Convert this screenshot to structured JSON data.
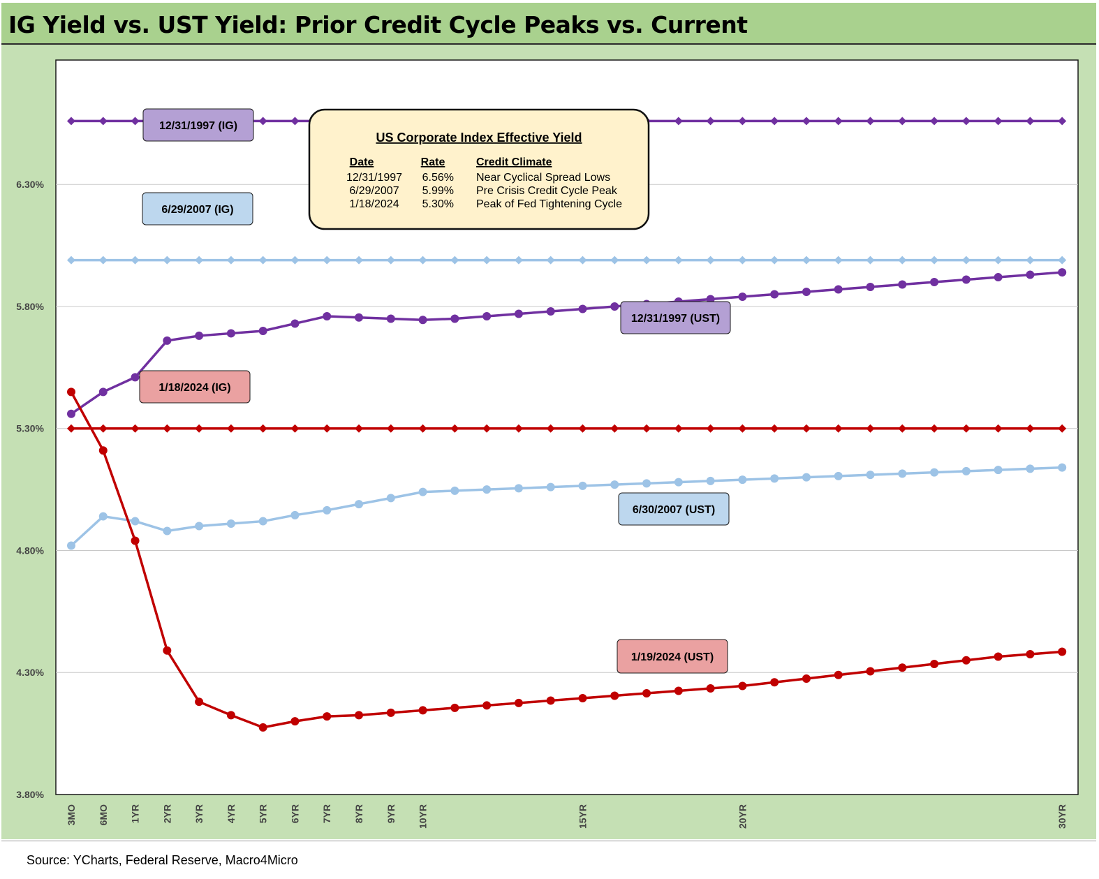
{
  "title": "IG Yield vs. UST Yield: Prior Credit Cycle Peaks vs. Current",
  "source": "Source: YCharts, Federal Reserve, Macro4Micro",
  "colors": {
    "purple_line": "#7030a0",
    "light_blue_line": "#9dc3e6",
    "red_line": "#c00000",
    "purple_label": "#b4a0d4",
    "blue_label": "#bdd7ee",
    "red_label": "#eaa1a1",
    "info_box": "#fff2cc",
    "chart_bg": "#c5e0b4",
    "title_bg": "#a9d18e"
  },
  "chart_data": {
    "type": "line",
    "title": "IG Yield vs. UST Yield: Prior Credit Cycle Peaks vs. Current",
    "x": [
      "3MO",
      "6MO",
      "1YR",
      "2YR",
      "3YR",
      "4YR",
      "5YR",
      "6YR",
      "7YR",
      "8YR",
      "9YR",
      "10YR",
      "11YR",
      "12YR",
      "13YR",
      "14YR",
      "15YR",
      "16YR",
      "17YR",
      "18YR",
      "19YR",
      "20YR",
      "21YR",
      "22YR",
      "23YR",
      "24YR",
      "25YR",
      "26YR",
      "27YR",
      "28YR",
      "29YR",
      "30YR"
    ],
    "x_tick_labels": {
      "0": "3MO",
      "1": "6MO",
      "2": "1YR",
      "3": "2YR",
      "4": "3YR",
      "5": "4YR",
      "6": "5YR",
      "7": "6YR",
      "8": "7YR",
      "9": "8YR",
      "10": "9YR",
      "11": "10YR",
      "16": "15YR",
      "21": "20YR",
      "31": "30YR"
    },
    "y_ticks": [
      "3.80%",
      "4.30%",
      "4.80%",
      "5.30%",
      "5.80%",
      "6.30%"
    ],
    "y_tick_values": [
      3.8,
      4.3,
      4.8,
      5.3,
      5.8,
      6.3
    ],
    "ylim": [
      3.8,
      6.81
    ],
    "grid": "horizontal",
    "series": [
      {
        "name": "12/31/1997 (IG)",
        "style": "diamond-flat",
        "color": "#7030a0",
        "values": [
          6.56,
          6.56,
          6.56,
          6.56,
          6.56,
          6.56,
          6.56,
          6.56,
          6.56,
          6.56,
          6.56,
          6.56,
          6.56,
          6.56,
          6.56,
          6.56,
          6.56,
          6.56,
          6.56,
          6.56,
          6.56,
          6.56,
          6.56,
          6.56,
          6.56,
          6.56,
          6.56,
          6.56,
          6.56,
          6.56,
          6.56,
          6.56
        ]
      },
      {
        "name": "6/29/2007 (IG)",
        "style": "diamond-flat",
        "color": "#9dc3e6",
        "values": [
          5.99,
          5.99,
          5.99,
          5.99,
          5.99,
          5.99,
          5.99,
          5.99,
          5.99,
          5.99,
          5.99,
          5.99,
          5.99,
          5.99,
          5.99,
          5.99,
          5.99,
          5.99,
          5.99,
          5.99,
          5.99,
          5.99,
          5.99,
          5.99,
          5.99,
          5.99,
          5.99,
          5.99,
          5.99,
          5.99,
          5.99,
          5.99
        ]
      },
      {
        "name": "1/18/2024 (IG)",
        "style": "diamond-flat",
        "color": "#c00000",
        "values": [
          5.3,
          5.3,
          5.3,
          5.3,
          5.3,
          5.3,
          5.3,
          5.3,
          5.3,
          5.3,
          5.3,
          5.3,
          5.3,
          5.3,
          5.3,
          5.3,
          5.3,
          5.3,
          5.3,
          5.3,
          5.3,
          5.3,
          5.3,
          5.3,
          5.3,
          5.3,
          5.3,
          5.3,
          5.3,
          5.3,
          5.3,
          5.3
        ]
      },
      {
        "name": "12/31/1997 (UST)",
        "style": "circle",
        "color": "#7030a0",
        "values": [
          5.36,
          5.45,
          5.51,
          5.66,
          5.68,
          5.69,
          5.7,
          5.73,
          5.76,
          5.755,
          5.75,
          5.745,
          5.75,
          5.76,
          5.77,
          5.78,
          5.79,
          5.8,
          5.81,
          5.82,
          5.83,
          5.84,
          5.85,
          5.86,
          5.87,
          5.88,
          5.89,
          5.9,
          5.91,
          5.92,
          5.93,
          5.94
        ]
      },
      {
        "name": "6/30/2007 (UST)",
        "style": "circle",
        "color": "#9dc3e6",
        "values": [
          4.82,
          4.94,
          4.92,
          4.88,
          4.9,
          4.91,
          4.92,
          4.945,
          4.965,
          4.99,
          5.015,
          5.04,
          5.045,
          5.05,
          5.055,
          5.06,
          5.065,
          5.07,
          5.075,
          5.08,
          5.085,
          5.09,
          5.095,
          5.1,
          5.105,
          5.11,
          5.115,
          5.12,
          5.125,
          5.13,
          5.135,
          5.14
        ]
      },
      {
        "name": "1/19/2024 (UST)",
        "style": "circle",
        "color": "#c00000",
        "values": [
          5.45,
          5.21,
          4.84,
          4.39,
          4.18,
          4.125,
          4.075,
          4.1,
          4.12,
          4.125,
          4.135,
          4.145,
          4.155,
          4.165,
          4.175,
          4.185,
          4.195,
          4.205,
          4.215,
          4.225,
          4.235,
          4.245,
          4.26,
          4.275,
          4.29,
          4.305,
          4.32,
          4.335,
          4.35,
          4.365,
          4.375,
          4.385
        ]
      }
    ],
    "series_labels": [
      {
        "text": "12/31/1997 (IG)",
        "color": "#b4a0d4"
      },
      {
        "text": "6/29/2007 (IG)",
        "color": "#bdd7ee"
      },
      {
        "text": "1/18/2024 (IG)",
        "color": "#eaa1a1"
      },
      {
        "text": "12/31/1997 (UST)",
        "color": "#b4a0d4"
      },
      {
        "text": "6/30/2007 (UST)",
        "color": "#bdd7ee"
      },
      {
        "text": "1/19/2024 (UST)",
        "color": "#eaa1a1"
      }
    ],
    "info_box": {
      "title": "US Corporate Index Effective Yield",
      "headers": [
        "Date",
        "Rate",
        "Credit Climate"
      ],
      "rows": [
        [
          "12/31/1997",
          "6.56%",
          "Near Cyclical Spread Lows"
        ],
        [
          "6/29/2007",
          "5.99%",
          "Pre Crisis Credit Cycle Peak"
        ],
        [
          "1/18/2024",
          "5.30%",
          "Peak of Fed Tightening Cycle"
        ]
      ]
    }
  }
}
